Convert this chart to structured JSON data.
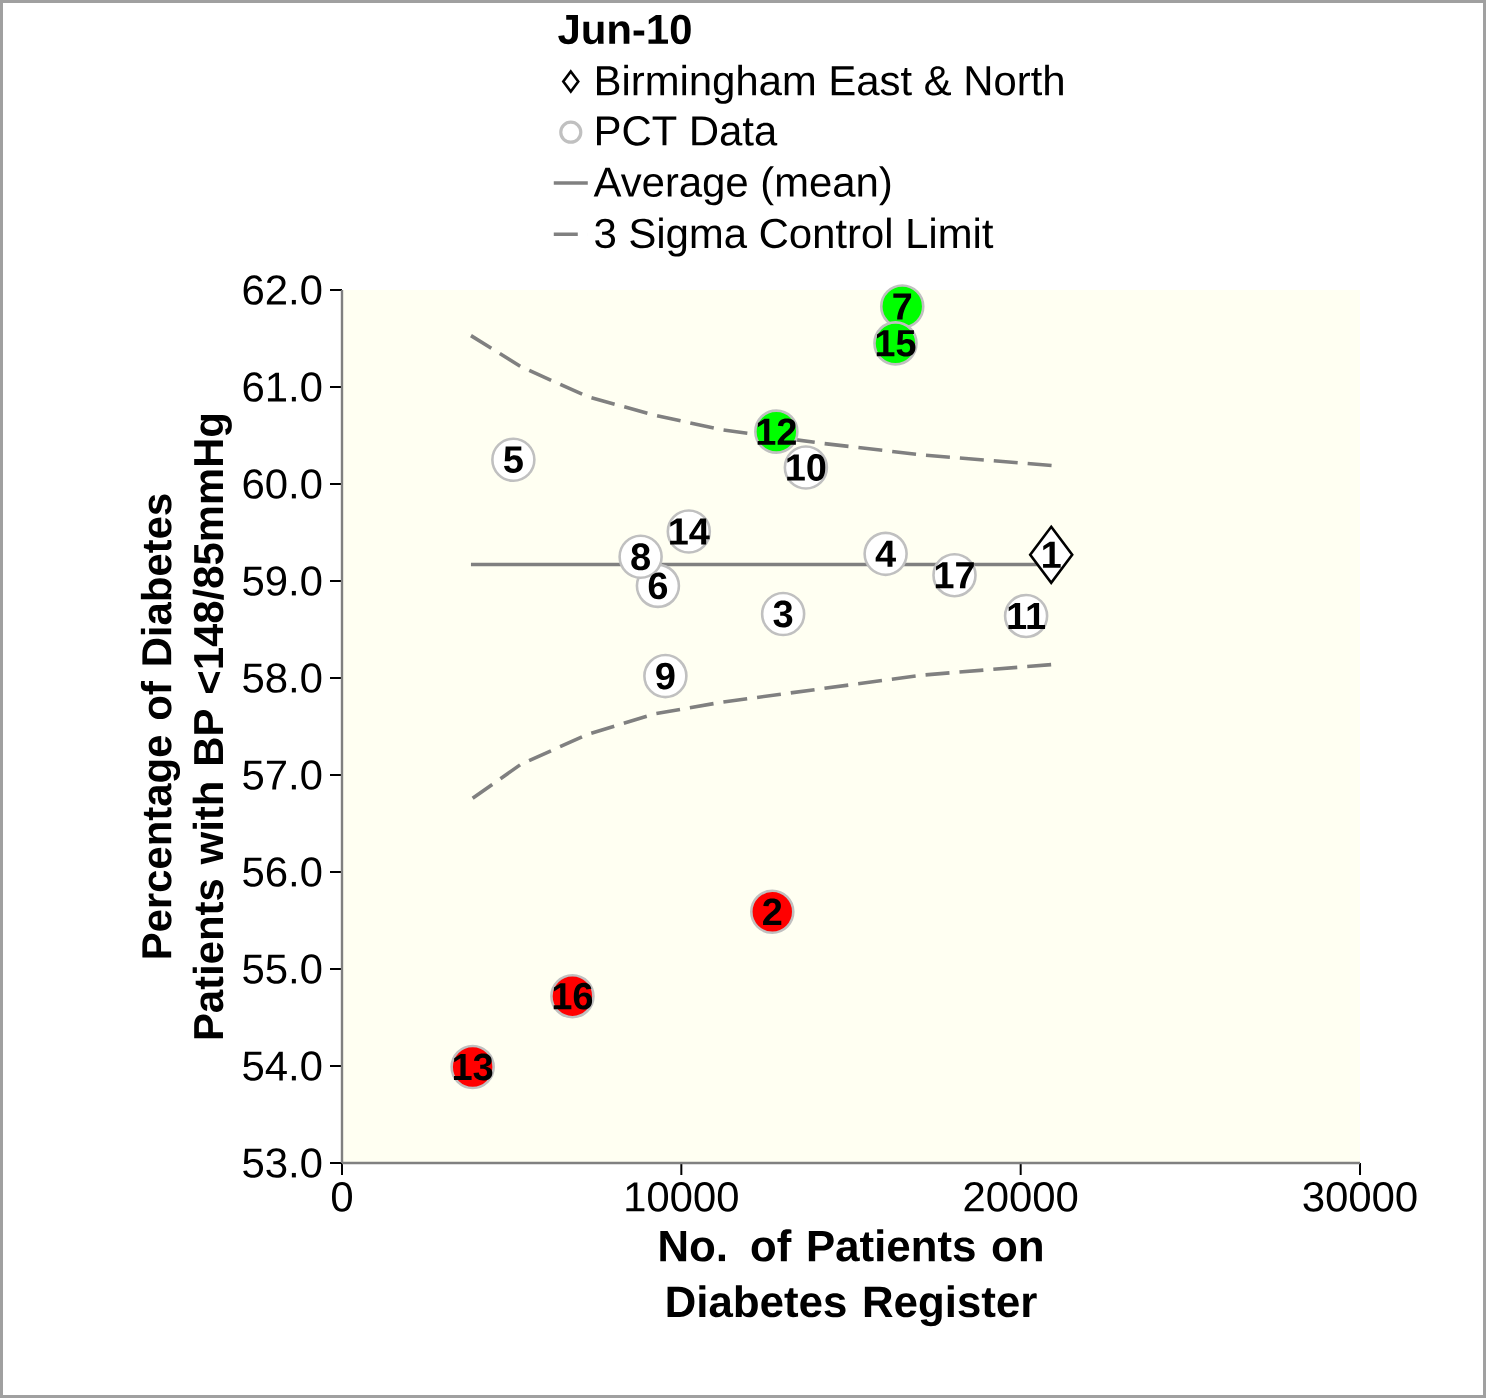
{
  "chart_data": {
    "type": "scatter",
    "xlabel": "No. of Patients on Diabetes Register",
    "ylabel": "Percentage of Diabetes Patients with BP <148/85mmHg",
    "legend_title": "Jun-10",
    "legend": "top",
    "xlim": [
      0,
      30000
    ],
    "xticks": [
      0,
      10000,
      20000,
      30000
    ],
    "ylim": [
      53,
      62
    ],
    "yticks": [
      {
        "value": 53,
        "label": "53.0"
      },
      {
        "value": 54,
        "label": "54.0"
      },
      {
        "value": 55,
        "label": "55.0"
      },
      {
        "value": 56,
        "label": "56.0"
      },
      {
        "value": 57,
        "label": "57.0"
      },
      {
        "value": 58,
        "label": "58.0"
      },
      {
        "value": 59,
        "label": "59.0"
      },
      {
        "value": 60,
        "label": "60.0"
      },
      {
        "value": 61,
        "label": "61.0"
      },
      {
        "value": 62,
        "label": "62.0"
      }
    ],
    "series": [
      {
        "name": "Birmingham East & North",
        "marker": "diamond",
        "color": "#000000",
        "x": [
          20900
        ],
        "values": [
          59.27
        ]
      },
      {
        "name": "PCT Data",
        "marker": "circle",
        "color": "#c0c0c0",
        "x": [
          12680,
          13000,
          16020,
          5050,
          9310,
          16510,
          8800,
          9530,
          13670,
          20160,
          12800,
          3850,
          10220,
          16310,
          6790,
          18050
        ],
        "values": [
          55.59,
          58.66,
          59.28,
          60.25,
          58.95,
          61.83,
          59.25,
          58.02,
          60.17,
          58.64,
          60.54,
          53.99,
          59.51,
          61.45,
          54.72,
          59.06
        ],
        "colors": [
          "#ff0000",
          "#ffffff",
          "#ffffff",
          "#ffffff",
          "#ffffff",
          "#00ff00",
          "#ffffff",
          "#ffffff",
          "#ffffff",
          "#ffffff",
          "#00ff00",
          "#ff0000",
          "#ffffff",
          "#00ff00",
          "#ff0000",
          "#ffffff"
        ]
      },
      {
        "name": "Average (mean)",
        "type": "line",
        "line_style": "solid",
        "color": "#808080",
        "x": [
          3800,
          20900
        ],
        "values": [
          59.17,
          59.17
        ]
      },
      {
        "name": "3 Sigma Control Limit",
        "type": "line",
        "line_style": "dashed",
        "color": "#808080",
        "x": [
          3800,
          5270,
          7240,
          9210,
          11180,
          14140,
          17100,
          20950
        ],
        "values": [
          61.53,
          61.21,
          60.9,
          60.71,
          60.56,
          60.42,
          60.3,
          60.19
        ]
      },
      {
        "type": "line",
        "line_style": "dashed",
        "color": "#808080",
        "x": [
          3850,
          5270,
          7240,
          9210,
          11180,
          14140,
          17100,
          20950
        ],
        "values": [
          56.76,
          57.11,
          57.42,
          57.63,
          57.75,
          57.89,
          58.03,
          58.14
        ]
      }
    ],
    "annotations": [
      {
        "text": "1",
        "x": 20900,
        "y": 59.27
      },
      {
        "text": "2",
        "x": 12680,
        "y": 55.59
      },
      {
        "text": "3",
        "x": 13000,
        "y": 58.66
      },
      {
        "text": "4",
        "x": 16020,
        "y": 59.28
      },
      {
        "text": "5",
        "x": 5050,
        "y": 60.25
      },
      {
        "text": "6",
        "x": 9310,
        "y": 58.95
      },
      {
        "text": "7",
        "x": 16510,
        "y": 61.83
      },
      {
        "text": "8",
        "x": 8800,
        "y": 59.25
      },
      {
        "text": "9",
        "x": 9530,
        "y": 58.02
      },
      {
        "text": "10",
        "x": 13670,
        "y": 60.17
      },
      {
        "text": "11",
        "x": 20160,
        "y": 58.64
      },
      {
        "text": "12",
        "x": 12800,
        "y": 60.54
      },
      {
        "text": "13",
        "x": 3850,
        "y": 53.99
      },
      {
        "text": "14",
        "x": 10220,
        "y": 59.51
      },
      {
        "text": "15",
        "x": 16310,
        "y": 61.45
      },
      {
        "text": "16",
        "x": 6790,
        "y": 54.72
      },
      {
        "text": "17",
        "x": 18050,
        "y": 59.06
      }
    ]
  }
}
